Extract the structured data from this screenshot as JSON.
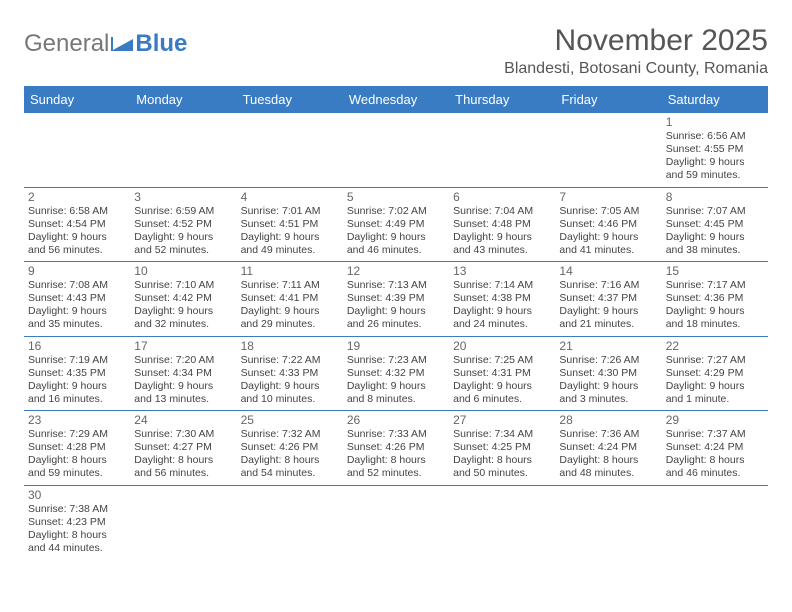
{
  "logo": {
    "text_a": "General",
    "text_b": "Blue"
  },
  "title": "November 2025",
  "location": "Blandesti, Botosani County, Romania",
  "colors": {
    "header_bg": "#3a7cc4",
    "header_text": "#ffffff",
    "border": "#3a7cc4",
    "page_bg": "#ffffff",
    "body_text": "#444444",
    "title_text": "#555555"
  },
  "day_headers": [
    "Sunday",
    "Monday",
    "Tuesday",
    "Wednesday",
    "Thursday",
    "Friday",
    "Saturday"
  ],
  "weeks": [
    [
      null,
      null,
      null,
      null,
      null,
      null,
      {
        "n": "1",
        "sr": "Sunrise: 6:56 AM",
        "ss": "Sunset: 4:55 PM",
        "d1": "Daylight: 9 hours",
        "d2": "and 59 minutes."
      }
    ],
    [
      {
        "n": "2",
        "sr": "Sunrise: 6:58 AM",
        "ss": "Sunset: 4:54 PM",
        "d1": "Daylight: 9 hours",
        "d2": "and 56 minutes."
      },
      {
        "n": "3",
        "sr": "Sunrise: 6:59 AM",
        "ss": "Sunset: 4:52 PM",
        "d1": "Daylight: 9 hours",
        "d2": "and 52 minutes."
      },
      {
        "n": "4",
        "sr": "Sunrise: 7:01 AM",
        "ss": "Sunset: 4:51 PM",
        "d1": "Daylight: 9 hours",
        "d2": "and 49 minutes."
      },
      {
        "n": "5",
        "sr": "Sunrise: 7:02 AM",
        "ss": "Sunset: 4:49 PM",
        "d1": "Daylight: 9 hours",
        "d2": "and 46 minutes."
      },
      {
        "n": "6",
        "sr": "Sunrise: 7:04 AM",
        "ss": "Sunset: 4:48 PM",
        "d1": "Daylight: 9 hours",
        "d2": "and 43 minutes."
      },
      {
        "n": "7",
        "sr": "Sunrise: 7:05 AM",
        "ss": "Sunset: 4:46 PM",
        "d1": "Daylight: 9 hours",
        "d2": "and 41 minutes."
      },
      {
        "n": "8",
        "sr": "Sunrise: 7:07 AM",
        "ss": "Sunset: 4:45 PM",
        "d1": "Daylight: 9 hours",
        "d2": "and 38 minutes."
      }
    ],
    [
      {
        "n": "9",
        "sr": "Sunrise: 7:08 AM",
        "ss": "Sunset: 4:43 PM",
        "d1": "Daylight: 9 hours",
        "d2": "and 35 minutes."
      },
      {
        "n": "10",
        "sr": "Sunrise: 7:10 AM",
        "ss": "Sunset: 4:42 PM",
        "d1": "Daylight: 9 hours",
        "d2": "and 32 minutes."
      },
      {
        "n": "11",
        "sr": "Sunrise: 7:11 AM",
        "ss": "Sunset: 4:41 PM",
        "d1": "Daylight: 9 hours",
        "d2": "and 29 minutes."
      },
      {
        "n": "12",
        "sr": "Sunrise: 7:13 AM",
        "ss": "Sunset: 4:39 PM",
        "d1": "Daylight: 9 hours",
        "d2": "and 26 minutes."
      },
      {
        "n": "13",
        "sr": "Sunrise: 7:14 AM",
        "ss": "Sunset: 4:38 PM",
        "d1": "Daylight: 9 hours",
        "d2": "and 24 minutes."
      },
      {
        "n": "14",
        "sr": "Sunrise: 7:16 AM",
        "ss": "Sunset: 4:37 PM",
        "d1": "Daylight: 9 hours",
        "d2": "and 21 minutes."
      },
      {
        "n": "15",
        "sr": "Sunrise: 7:17 AM",
        "ss": "Sunset: 4:36 PM",
        "d1": "Daylight: 9 hours",
        "d2": "and 18 minutes."
      }
    ],
    [
      {
        "n": "16",
        "sr": "Sunrise: 7:19 AM",
        "ss": "Sunset: 4:35 PM",
        "d1": "Daylight: 9 hours",
        "d2": "and 16 minutes."
      },
      {
        "n": "17",
        "sr": "Sunrise: 7:20 AM",
        "ss": "Sunset: 4:34 PM",
        "d1": "Daylight: 9 hours",
        "d2": "and 13 minutes."
      },
      {
        "n": "18",
        "sr": "Sunrise: 7:22 AM",
        "ss": "Sunset: 4:33 PM",
        "d1": "Daylight: 9 hours",
        "d2": "and 10 minutes."
      },
      {
        "n": "19",
        "sr": "Sunrise: 7:23 AM",
        "ss": "Sunset: 4:32 PM",
        "d1": "Daylight: 9 hours",
        "d2": "and 8 minutes."
      },
      {
        "n": "20",
        "sr": "Sunrise: 7:25 AM",
        "ss": "Sunset: 4:31 PM",
        "d1": "Daylight: 9 hours",
        "d2": "and 6 minutes."
      },
      {
        "n": "21",
        "sr": "Sunrise: 7:26 AM",
        "ss": "Sunset: 4:30 PM",
        "d1": "Daylight: 9 hours",
        "d2": "and 3 minutes."
      },
      {
        "n": "22",
        "sr": "Sunrise: 7:27 AM",
        "ss": "Sunset: 4:29 PM",
        "d1": "Daylight: 9 hours",
        "d2": "and 1 minute."
      }
    ],
    [
      {
        "n": "23",
        "sr": "Sunrise: 7:29 AM",
        "ss": "Sunset: 4:28 PM",
        "d1": "Daylight: 8 hours",
        "d2": "and 59 minutes."
      },
      {
        "n": "24",
        "sr": "Sunrise: 7:30 AM",
        "ss": "Sunset: 4:27 PM",
        "d1": "Daylight: 8 hours",
        "d2": "and 56 minutes."
      },
      {
        "n": "25",
        "sr": "Sunrise: 7:32 AM",
        "ss": "Sunset: 4:26 PM",
        "d1": "Daylight: 8 hours",
        "d2": "and 54 minutes."
      },
      {
        "n": "26",
        "sr": "Sunrise: 7:33 AM",
        "ss": "Sunset: 4:26 PM",
        "d1": "Daylight: 8 hours",
        "d2": "and 52 minutes."
      },
      {
        "n": "27",
        "sr": "Sunrise: 7:34 AM",
        "ss": "Sunset: 4:25 PM",
        "d1": "Daylight: 8 hours",
        "d2": "and 50 minutes."
      },
      {
        "n": "28",
        "sr": "Sunrise: 7:36 AM",
        "ss": "Sunset: 4:24 PM",
        "d1": "Daylight: 8 hours",
        "d2": "and 48 minutes."
      },
      {
        "n": "29",
        "sr": "Sunrise: 7:37 AM",
        "ss": "Sunset: 4:24 PM",
        "d1": "Daylight: 8 hours",
        "d2": "and 46 minutes."
      }
    ],
    [
      {
        "n": "30",
        "sr": "Sunrise: 7:38 AM",
        "ss": "Sunset: 4:23 PM",
        "d1": "Daylight: 8 hours",
        "d2": "and 44 minutes."
      },
      null,
      null,
      null,
      null,
      null,
      null
    ]
  ]
}
